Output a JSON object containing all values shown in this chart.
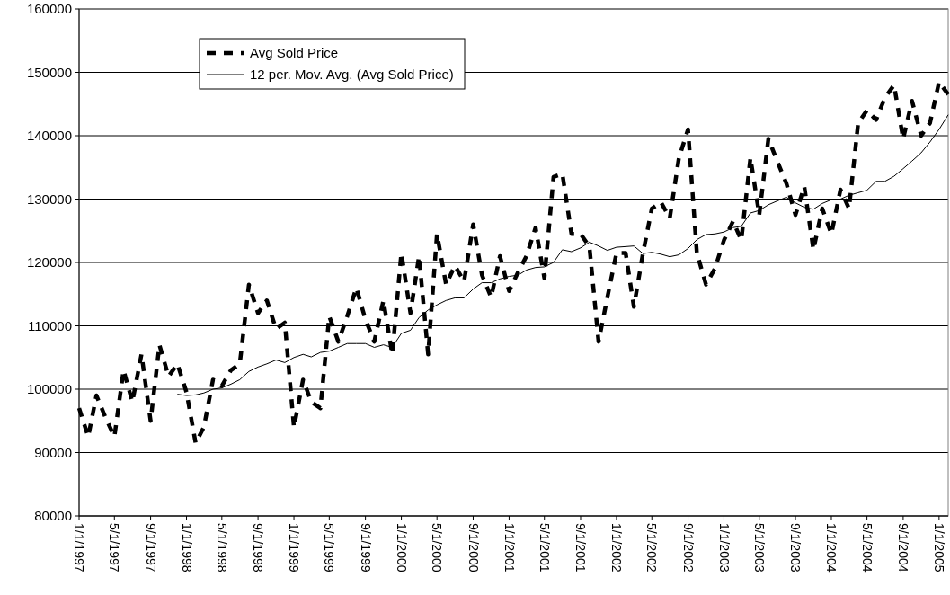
{
  "chart_data": {
    "type": "line",
    "x": [
      "1997-01-01",
      "1997-02-01",
      "1997-03-01",
      "1997-04-01",
      "1997-05-01",
      "1997-06-01",
      "1997-07-01",
      "1997-08-01",
      "1997-09-01",
      "1997-10-01",
      "1997-11-01",
      "1997-12-01",
      "1998-01-01",
      "1998-02-01",
      "1998-03-01",
      "1998-04-01",
      "1998-05-01",
      "1998-06-01",
      "1998-07-01",
      "1998-08-01",
      "1998-09-01",
      "1998-10-01",
      "1998-11-01",
      "1998-12-01",
      "1999-01-01",
      "1999-02-01",
      "1999-03-01",
      "1999-04-01",
      "1999-05-01",
      "1999-06-01",
      "1999-07-01",
      "1999-08-01",
      "1999-09-01",
      "1999-10-01",
      "1999-11-01",
      "1999-12-01",
      "2000-01-01",
      "2000-02-01",
      "2000-03-01",
      "2000-04-01",
      "2000-05-01",
      "2000-06-01",
      "2000-07-01",
      "2000-08-01",
      "2000-09-01",
      "2000-10-01",
      "2000-11-01",
      "2000-12-01",
      "2001-01-01",
      "2001-02-01",
      "2001-03-01",
      "2001-04-01",
      "2001-05-01",
      "2001-06-01",
      "2001-07-01",
      "2001-08-01",
      "2001-09-01",
      "2001-10-01",
      "2001-11-01",
      "2001-12-01",
      "2002-01-01",
      "2002-02-01",
      "2002-03-01",
      "2002-04-01",
      "2002-05-01",
      "2002-06-01",
      "2002-07-01",
      "2002-08-01",
      "2002-09-01",
      "2002-10-01",
      "2002-11-01",
      "2002-12-01",
      "2003-01-01",
      "2003-02-01",
      "2003-03-01",
      "2003-04-01",
      "2003-05-01",
      "2003-06-01",
      "2003-07-01",
      "2003-08-01",
      "2003-09-01",
      "2003-10-01",
      "2003-11-01",
      "2003-12-01",
      "2004-01-01",
      "2004-02-01",
      "2004-03-01",
      "2004-04-01",
      "2004-05-01",
      "2004-06-01",
      "2004-07-01",
      "2004-08-01",
      "2004-09-01",
      "2004-10-01",
      "2004-11-01",
      "2004-12-01",
      "2005-01-01",
      "2005-02-01"
    ],
    "series": [
      {
        "name": "Avg Sold Price",
        "color": "#000000",
        "line_style": "dashed",
        "values": [
          97000,
          92500,
          99000,
          95500,
          92500,
          103000,
          98000,
          105500,
          95000,
          107000,
          102000,
          104000,
          99500,
          91500,
          94000,
          101500,
          100500,
          103000,
          104000,
          116500,
          112000,
          114000,
          109500,
          110500,
          94000,
          101500,
          98000,
          97000,
          111500,
          107500,
          111500,
          116000,
          111000,
          107500,
          114000,
          105500,
          121500,
          112000,
          121000,
          105500,
          124500,
          116500,
          119500,
          117000,
          126000,
          118000,
          114500,
          121000,
          115500,
          118500,
          121000,
          125500,
          117500,
          133500,
          134000,
          124500,
          124500,
          122500,
          107500,
          114500,
          121500,
          121500,
          113000,
          121500,
          128500,
          129500,
          127000,
          136500,
          141000,
          121500,
          116500,
          119000,
          123500,
          126500,
          123500,
          136500,
          127500,
          139500,
          136000,
          132500,
          127500,
          132000,
          122000,
          128500,
          124500,
          131500,
          128500,
          142000,
          144000,
          142500,
          146000,
          148000,
          139500,
          145500,
          140000,
          142000,
          148500,
          146500
        ]
      },
      {
        "name": "12 per. Mov. Avg. (Avg Sold Price)",
        "color": "#000000",
        "line_style": "solid",
        "x": [
          "1997-12-01",
          "1998-01-01",
          "1998-02-01",
          "1998-03-01",
          "1998-04-01",
          "1998-05-01",
          "1998-06-01",
          "1998-07-01",
          "1998-08-01",
          "1998-09-01",
          "1998-10-01",
          "1998-11-01",
          "1998-12-01",
          "1999-01-01",
          "1999-02-01",
          "1999-03-01",
          "1999-04-01",
          "1999-05-01",
          "1999-06-01",
          "1999-07-01",
          "1999-08-01",
          "1999-09-01",
          "1999-10-01",
          "1999-11-01",
          "1999-12-01",
          "2000-01-01",
          "2000-02-01",
          "2000-03-01",
          "2000-04-01",
          "2000-05-01",
          "2000-06-01",
          "2000-07-01",
          "2000-08-01",
          "2000-09-01",
          "2000-10-01",
          "2000-11-01",
          "2000-12-01",
          "2001-01-01",
          "2001-02-01",
          "2001-03-01",
          "2001-04-01",
          "2001-05-01",
          "2001-06-01",
          "2001-07-01",
          "2001-08-01",
          "2001-09-01",
          "2001-10-01",
          "2001-11-01",
          "2001-12-01",
          "2002-01-01",
          "2002-02-01",
          "2002-03-01",
          "2002-04-01",
          "2002-05-01",
          "2002-06-01",
          "2002-07-01",
          "2002-08-01",
          "2002-09-01",
          "2002-10-01",
          "2002-11-01",
          "2002-12-01",
          "2003-01-01",
          "2003-02-01",
          "2003-03-01",
          "2003-04-01",
          "2003-05-01",
          "2003-06-01",
          "2003-07-01",
          "2003-08-01",
          "2003-09-01",
          "2003-10-01",
          "2003-11-01",
          "2003-12-01",
          "2004-01-01",
          "2004-02-01",
          "2004-03-01",
          "2004-04-01",
          "2004-05-01",
          "2004-06-01",
          "2004-07-01",
          "2004-08-01",
          "2004-09-01",
          "2004-10-01",
          "2004-11-01",
          "2004-12-01",
          "2005-01-01",
          "2005-02-01"
        ],
        "values": [
          99200,
          99000,
          99100,
          99400,
          100000,
          100200,
          100800,
          101500,
          102800,
          103500,
          104000,
          104600,
          104200,
          105000,
          105500,
          105100,
          105800,
          106000,
          106600,
          107200,
          107200,
          107200,
          106600,
          107000,
          106600,
          108800,
          109300,
          111300,
          112500,
          113300,
          114000,
          114400,
          114400,
          115800,
          116800,
          116800,
          117400,
          117800,
          118000,
          118800,
          119200,
          119300,
          120000,
          122000,
          121700,
          122300,
          123200,
          122600,
          121900,
          122400,
          122500,
          122600,
          121400,
          121600,
          121300,
          120900,
          121200,
          122200,
          123600,
          124400,
          124500,
          124800,
          125500,
          125700,
          127800,
          128200,
          129100,
          129700,
          130300,
          129400,
          128700,
          128400,
          129300,
          129900,
          130000,
          130600,
          131000,
          131400,
          132800,
          132800,
          133600,
          134800,
          136000,
          137300,
          139000,
          141000,
          143300
        ]
      }
    ],
    "xlim": [
      "1997-01-01",
      "2005-02-01"
    ],
    "xticks": [
      {
        "value": "1997-01-01",
        "label": "1/1/1997"
      },
      {
        "value": "1997-05-01",
        "label": "5/1/1997"
      },
      {
        "value": "1997-09-01",
        "label": "9/1/1997"
      },
      {
        "value": "1998-01-01",
        "label": "1/1/1998"
      },
      {
        "value": "1998-05-01",
        "label": "5/1/1998"
      },
      {
        "value": "1998-09-01",
        "label": "9/1/1998"
      },
      {
        "value": "1999-01-01",
        "label": "1/1/1999"
      },
      {
        "value": "1999-05-01",
        "label": "5/1/1999"
      },
      {
        "value": "1999-09-01",
        "label": "9/1/1999"
      },
      {
        "value": "2000-01-01",
        "label": "1/1/2000"
      },
      {
        "value": "2000-05-01",
        "label": "5/1/2000"
      },
      {
        "value": "2000-09-01",
        "label": "9/1/2000"
      },
      {
        "value": "2001-01-01",
        "label": "1/1/2001"
      },
      {
        "value": "2001-05-01",
        "label": "5/1/2001"
      },
      {
        "value": "2001-09-01",
        "label": "9/1/2001"
      },
      {
        "value": "2002-01-01",
        "label": "1/1/2002"
      },
      {
        "value": "2002-05-01",
        "label": "5/1/2002"
      },
      {
        "value": "2002-09-01",
        "label": "9/1/2002"
      },
      {
        "value": "2003-01-01",
        "label": "1/1/2003"
      },
      {
        "value": "2003-05-01",
        "label": "5/1/2003"
      },
      {
        "value": "2003-09-01",
        "label": "9/1/2003"
      },
      {
        "value": "2004-01-01",
        "label": "1/1/2004"
      },
      {
        "value": "2004-05-01",
        "label": "5/1/2004"
      },
      {
        "value": "2004-09-01",
        "label": "9/1/2004"
      },
      {
        "value": "2005-01-01",
        "label": "1/1/2005"
      }
    ],
    "ylim": [
      80000,
      160000
    ],
    "yticks": [
      80000,
      90000,
      100000,
      110000,
      120000,
      130000,
      140000,
      150000,
      160000
    ],
    "grid": "y",
    "legend": "top left"
  }
}
